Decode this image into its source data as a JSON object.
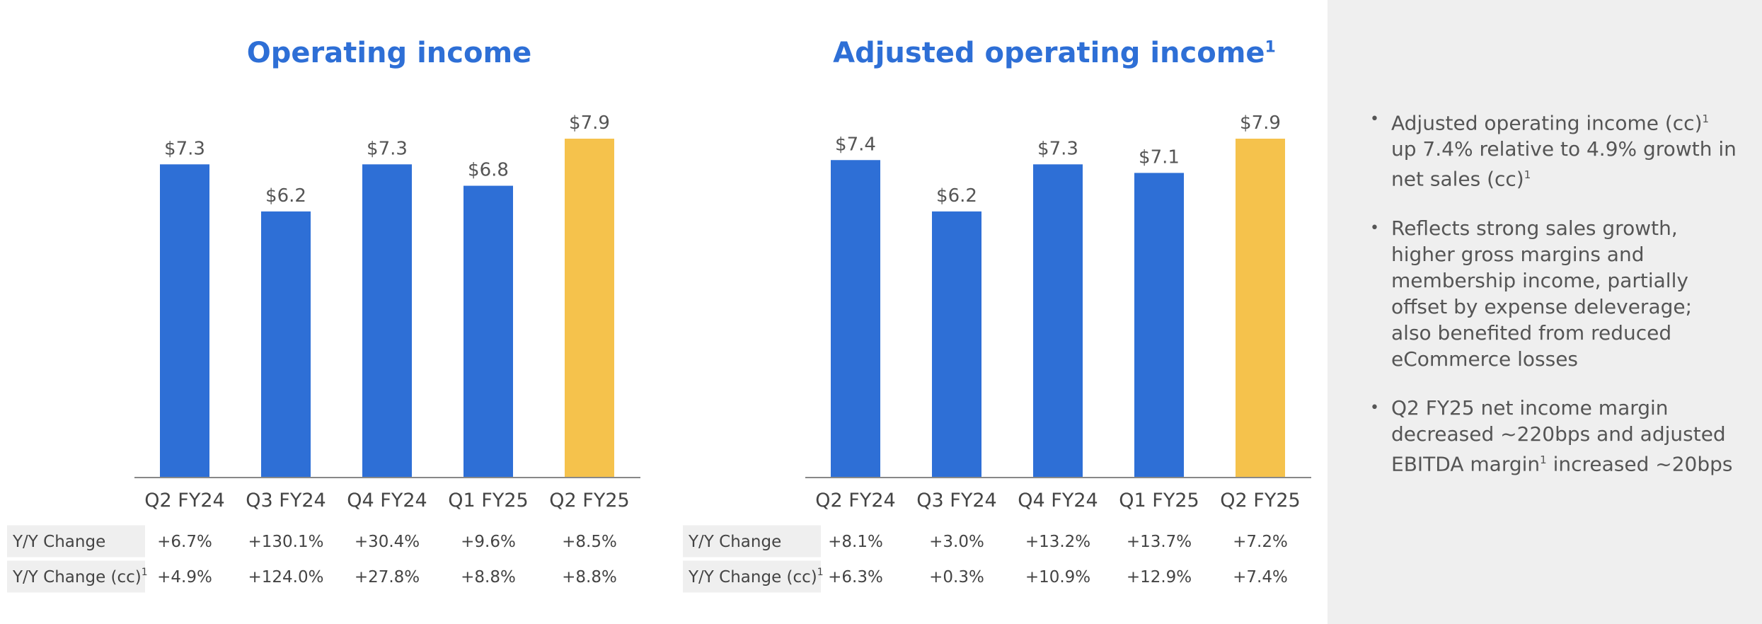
{
  "chart_data": [
    {
      "type": "bar",
      "title": "Operating income",
      "title_superscript": "",
      "categories": [
        "Q2 FY24",
        "Q3 FY24",
        "Q4 FY24",
        "Q1 FY25",
        "Q2 FY25"
      ],
      "values": [
        7.3,
        6.2,
        7.3,
        6.8,
        7.9
      ],
      "value_labels": [
        "$7.3",
        "$6.2",
        "$7.3",
        "$6.8",
        "$7.9"
      ],
      "highlight_index": 4,
      "ylim": [
        0,
        7.9
      ],
      "xlabel": "",
      "ylabel": "",
      "grid": false,
      "table_rows": [
        {
          "label": "Y/Y Change",
          "superscript": "",
          "values": [
            "+6.7%",
            "+130.1%",
            "+30.4%",
            "+9.6%",
            "+8.5%"
          ]
        },
        {
          "label": "Y/Y Change (cc)",
          "superscript": "1",
          "values": [
            "+4.9%",
            "+124.0%",
            "+27.8%",
            "+8.8%",
            "+8.8%"
          ]
        }
      ]
    },
    {
      "type": "bar",
      "title": "Adjusted operating income",
      "title_superscript": "1",
      "categories": [
        "Q2 FY24",
        "Q3 FY24",
        "Q4 FY24",
        "Q1 FY25",
        "Q2 FY25"
      ],
      "values": [
        7.4,
        6.2,
        7.3,
        7.1,
        7.9
      ],
      "value_labels": [
        "$7.4",
        "$6.2",
        "$7.3",
        "$7.1",
        "$7.9"
      ],
      "highlight_index": 4,
      "ylim": [
        0,
        7.9
      ],
      "xlabel": "",
      "ylabel": "",
      "grid": false,
      "table_rows": [
        {
          "label": "Y/Y Change",
          "superscript": "",
          "values": [
            "+8.1%",
            "+3.0%",
            "+13.2%",
            "+13.7%",
            "+7.2%"
          ]
        },
        {
          "label": "Y/Y Change (cc)",
          "superscript": "1",
          "values": [
            "+6.3%",
            "+0.3%",
            "+10.9%",
            "+12.9%",
            "+7.4%"
          ]
        }
      ]
    }
  ],
  "colors": {
    "bar": "#2e6fd6",
    "highlight": "#f5c24c",
    "title": "#2e6fd6",
    "axis": "#888888",
    "table_header_bg": "#efefef",
    "panel_bg": "#efefef"
  },
  "notes": {
    "b1": {
      "part1": "Adjusted operating income (cc)",
      "sup1": "1",
      "part2": " up 7.4% relative to 4.9% growth in net sales (cc)",
      "sup2": "1"
    },
    "b2": {
      "text": "Reflects strong sales growth, higher gross margins and membership income, partially offset by expense deleverage; also benefited from reduced eCommerce losses"
    },
    "b3": {
      "part1": "Q2 FY25 net income margin decreased ~220bps and adjusted EBITDA margin",
      "sup1": "1",
      "part2": " increased ~20bps"
    }
  }
}
